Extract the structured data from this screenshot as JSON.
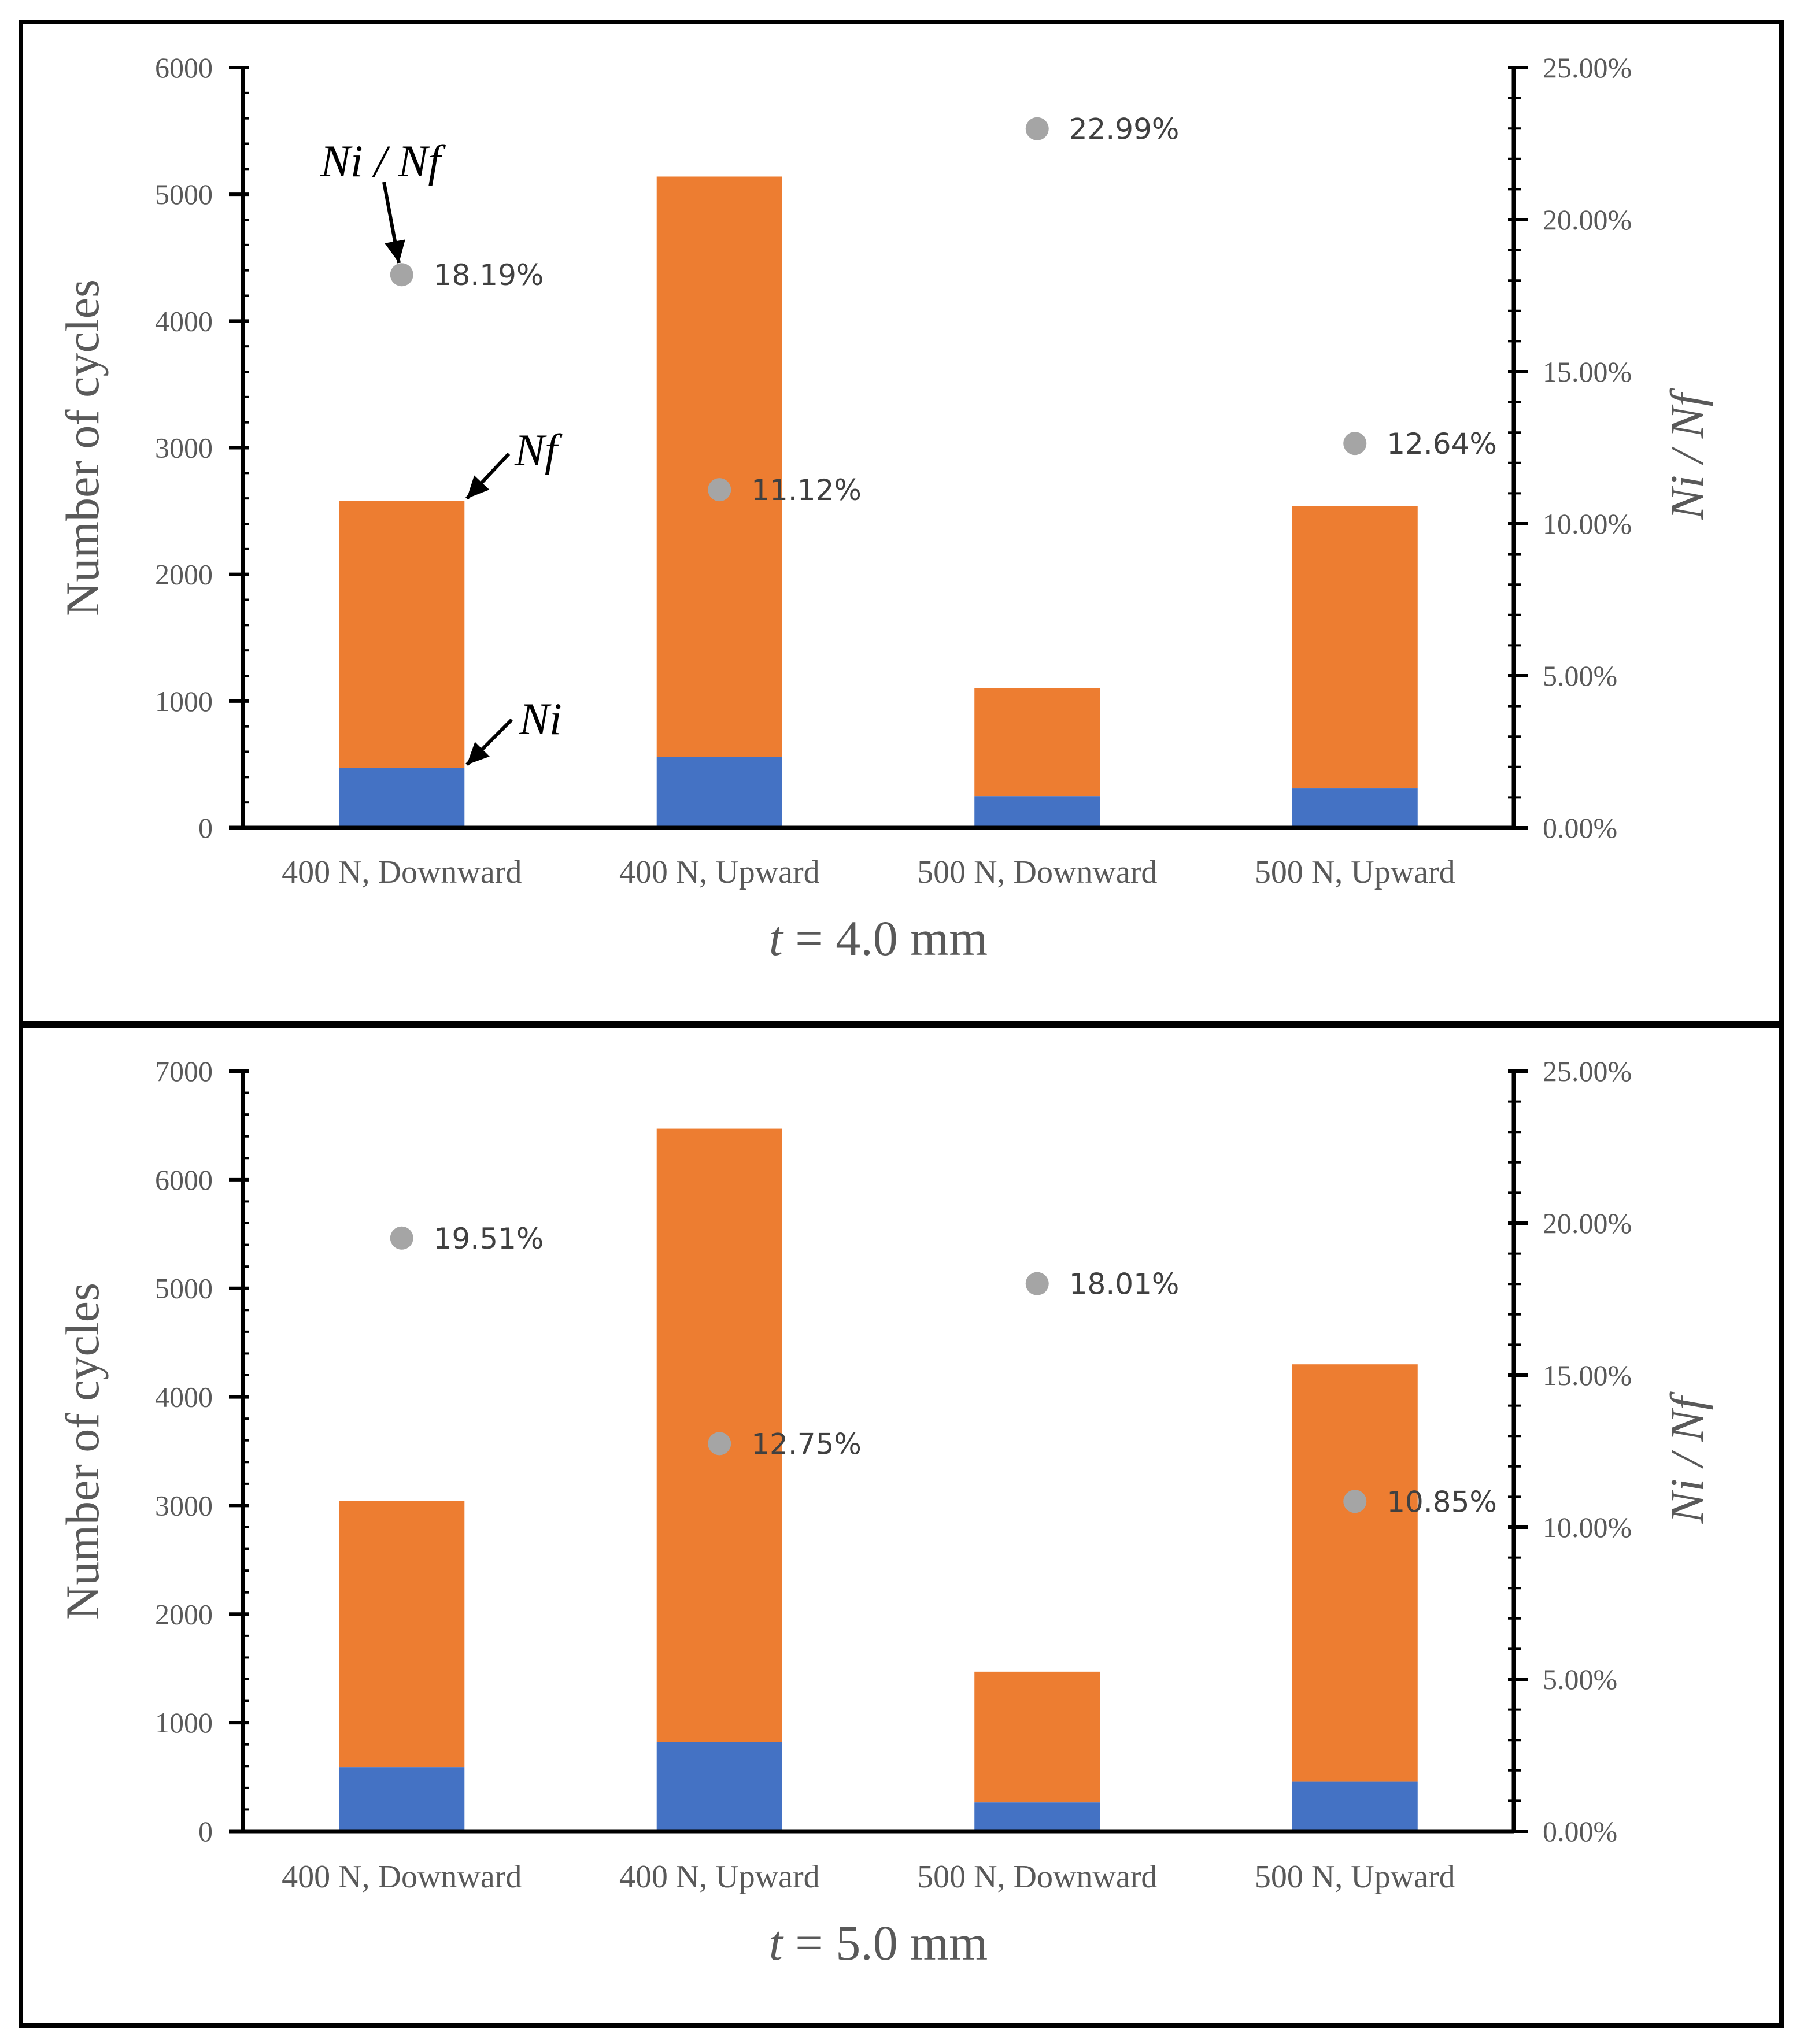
{
  "colors": {
    "ni": "#4472C4",
    "nf": "#ED7D31",
    "ratio": "#A5A5A5",
    "axis": "#000000",
    "text": "#595959",
    "frame": "#000000"
  },
  "chart_data": [
    {
      "type": "bar",
      "stacked": true,
      "title_prefix": "t",
      "title_suffix": " = 4.0 mm",
      "ylabel": "Number of cycles",
      "y2label": "Ni / Nf",
      "categories": [
        "400 N, Downward",
        "400 N, Upward",
        "500 N, Downward",
        "500 N, Upward"
      ],
      "ylim": [
        0,
        6000
      ],
      "yticks": [
        0,
        1000,
        2000,
        3000,
        4000,
        5000,
        6000
      ],
      "y2lim": [
        0,
        25
      ],
      "y2ticks": [
        "0.00%",
        "5.00%",
        "10.00%",
        "15.00%",
        "20.00%",
        "25.00%"
      ],
      "series": [
        {
          "name": "Ni",
          "values": [
            470,
            560,
            250,
            310
          ]
        },
        {
          "name": "Nf",
          "values": [
            2580,
            5140,
            1100,
            2540
          ]
        }
      ],
      "ratio": {
        "name": "Ni / Nf",
        "values": [
          18.19,
          11.12,
          22.99,
          12.64
        ],
        "labels": [
          "18.19%",
          "11.12%",
          "22.99%",
          "12.64%"
        ]
      },
      "annotations": {
        "ratio_label": "Ni / Nf",
        "nf_label": "Nf",
        "ni_label": "Ni"
      }
    },
    {
      "type": "bar",
      "stacked": true,
      "title_prefix": "t",
      "title_suffix": " = 5.0 mm",
      "ylabel": "Number of cycles",
      "y2label": "Ni / Nf",
      "categories": [
        "400 N, Downward",
        "400 N, Upward",
        "500 N, Downward",
        "500 N, Upward"
      ],
      "ylim": [
        0,
        7000
      ],
      "yticks": [
        0,
        1000,
        2000,
        3000,
        4000,
        5000,
        6000,
        7000
      ],
      "y2lim": [
        0,
        25
      ],
      "y2ticks": [
        "0.00%",
        "5.00%",
        "10.00%",
        "15.00%",
        "20.00%",
        "25.00%"
      ],
      "series": [
        {
          "name": "Ni",
          "values": [
            590,
            820,
            265,
            460
          ]
        },
        {
          "name": "Nf",
          "values": [
            3040,
            6470,
            1470,
            4300
          ]
        }
      ],
      "ratio": {
        "name": "Ni / Nf",
        "values": [
          19.51,
          12.75,
          18.01,
          10.85
        ],
        "labels": [
          "19.51%",
          "12.75%",
          "18.01%",
          "10.85%"
        ]
      }
    }
  ]
}
